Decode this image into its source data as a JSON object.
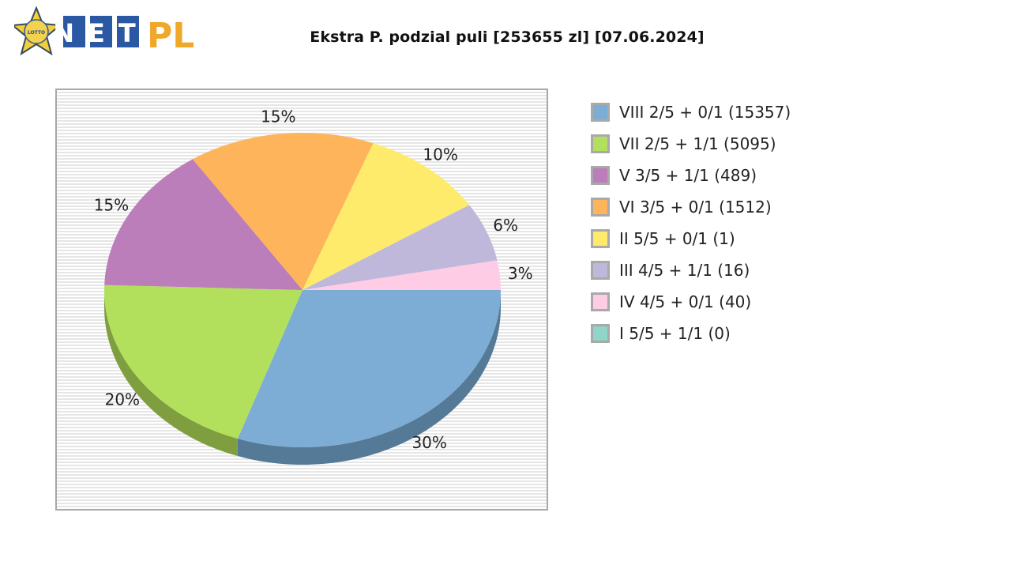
{
  "logo": {
    "badge_text": "WYNIKI LOTTO",
    "brand": "NET",
    "brand_suffix": "PL"
  },
  "chart_data": {
    "type": "pie",
    "title": "Ekstra P. podzial puli [253655 zl] [07.06.2024]",
    "legend_position": "right",
    "slices": [
      {
        "label": "VIII 2/5 + 0/1 (15357)",
        "percent": 30,
        "percent_label": "30%",
        "color": "#7dadd4",
        "shadow": "#547a98"
      },
      {
        "label": "VII 2/5 + 1/1 (5095)",
        "percent": 20,
        "percent_label": "20%",
        "color": "#b3e05c",
        "shadow": "#7f9e3f"
      },
      {
        "label": "V 3/5 + 1/1 (489)",
        "percent": 15,
        "percent_label": "15%",
        "color": "#bb7eba",
        "shadow": "#87588a"
      },
      {
        "label": "VI 3/5 + 0/1 (1512)",
        "percent": 15,
        "percent_label": "15%",
        "color": "#feb45a",
        "shadow": "#b57e3e"
      },
      {
        "label": "II 5/5 + 0/1 (1)",
        "percent": 10,
        "percent_label": "10%",
        "color": "#ffeb6b",
        "shadow": "#b5a54a"
      },
      {
        "label": "III 4/5 + 1/1 (16)",
        "percent": 6,
        "percent_label": "6%",
        "color": "#bfb8da",
        "shadow": "#878099"
      },
      {
        "label": "IV 4/5 + 0/1 (40)",
        "percent": 3,
        "percent_label": "3%",
        "color": "#ffcce6",
        "shadow": "#b58fa3"
      },
      {
        "label": "I 5/5 + 1/1 (0)",
        "percent": 0,
        "percent_label": "",
        "color": "#8fd6c8",
        "shadow": "#64968c"
      }
    ]
  }
}
